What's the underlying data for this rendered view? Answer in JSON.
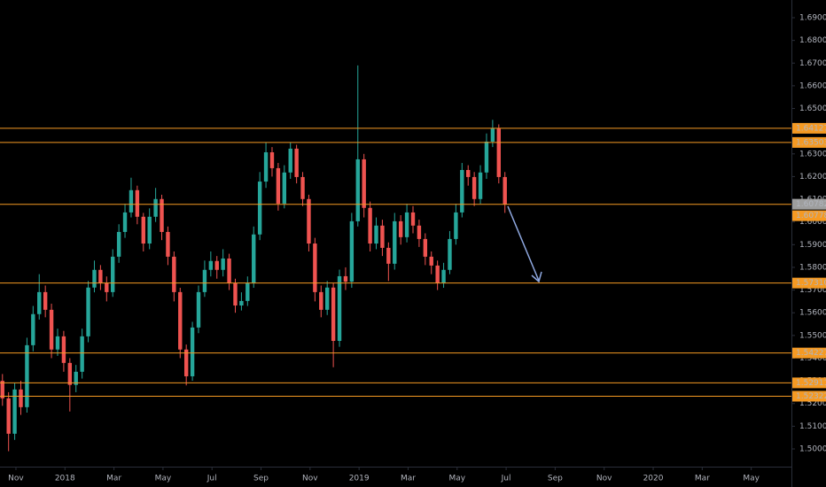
{
  "chart_data": {
    "type": "candlestick",
    "x": [
      -0.55,
      -0.3,
      -0.05,
      0.2,
      0.45,
      0.7,
      0.95,
      1.2,
      1.45,
      1.7,
      1.95,
      2.2,
      2.45,
      2.7,
      2.95,
      3.2,
      3.45,
      3.7,
      3.95,
      4.2,
      4.45,
      4.7,
      4.95,
      5.2,
      5.45,
      5.7,
      5.95,
      6.2,
      6.45,
      6.7,
      6.95,
      7.2,
      7.45,
      7.7,
      7.95,
      8.2,
      8.45,
      8.7,
      8.95,
      9.2,
      9.45,
      9.7,
      9.95,
      10.2,
      10.45,
      10.7,
      10.95,
      11.2,
      11.45,
      11.7,
      11.95,
      12.2,
      12.45,
      12.7,
      12.95,
      13.2,
      13.45,
      13.7,
      13.95,
      14.2,
      14.45,
      14.7,
      14.95,
      15.2,
      15.45,
      15.7,
      15.95,
      16.2,
      16.45,
      16.7,
      16.95,
      17.2,
      17.45,
      17.7,
      17.95,
      18.2,
      18.45,
      18.7,
      18.95,
      19.2,
      19.45,
      19.7,
      19.95
    ],
    "open": [
      1.53,
      1.5223,
      1.5067,
      1.5262,
      1.5184,
      1.5457,
      1.5594,
      1.5691,
      1.5613,
      1.5438,
      1.5496,
      1.5379,
      1.5282,
      1.534,
      1.5496,
      1.5711,
      1.5789,
      1.573,
      1.5691,
      1.5847,
      1.5956,
      1.6042,
      1.614,
      1.6023,
      1.5905,
      1.6023,
      1.6101,
      1.5956,
      1.5847,
      1.5691,
      1.5438,
      1.532,
      1.5535,
      1.5691,
      1.5789,
      1.5828,
      1.5789,
      1.5839,
      1.573,
      1.5632,
      1.5652,
      1.573,
      1.5945,
      1.6178,
      1.6307,
      1.6237,
      1.6081,
      1.6218,
      1.6323,
      1.6198,
      1.6101,
      1.5905,
      1.5691,
      1.5613,
      1.5711,
      1.5476,
      1.5761,
      1.5737,
      1.6003,
      1.6276,
      1.6062,
      1.5905,
      1.5984,
      1.5886,
      1.5816,
      1.6003,
      1.5933,
      1.6042,
      1.5984,
      1.5925,
      1.5847,
      1.5808,
      1.573,
      1.5789,
      1.5925,
      1.6042,
      1.6229,
      1.6198,
      1.6101,
      1.6218,
      1.6354,
      1.6412,
      1.6198
    ],
    "high": [
      1.533,
      1.525,
      1.529,
      1.53,
      1.549,
      1.563,
      1.577,
      1.572,
      1.564,
      1.553,
      1.552,
      1.54,
      1.537,
      1.553,
      1.574,
      1.583,
      1.581,
      1.576,
      1.588,
      1.599,
      1.608,
      1.6195,
      1.616,
      1.604,
      1.606,
      1.615,
      1.612,
      1.598,
      1.587,
      1.571,
      1.546,
      1.556,
      1.572,
      1.583,
      1.587,
      1.585,
      1.588,
      1.586,
      1.575,
      1.569,
      1.576,
      1.598,
      1.622,
      1.635,
      1.633,
      1.626,
      1.625,
      1.635,
      1.634,
      1.622,
      1.612,
      1.593,
      1.572,
      1.574,
      1.573,
      1.579,
      1.58,
      1.604,
      1.669,
      1.63,
      1.609,
      1.602,
      1.601,
      1.591,
      1.604,
      1.603,
      1.608,
      1.607,
      1.601,
      1.595,
      1.587,
      1.583,
      1.582,
      1.596,
      1.608,
      1.626,
      1.625,
      1.622,
      1.625,
      1.639,
      1.645,
      1.643,
      1.622
    ],
    "low": [
      1.519,
      1.499,
      1.504,
      1.515,
      1.516,
      1.543,
      1.557,
      1.558,
      1.54,
      1.541,
      1.534,
      1.5165,
      1.525,
      1.531,
      1.547,
      1.569,
      1.57,
      1.565,
      1.567,
      1.582,
      1.593,
      1.602,
      1.599,
      1.587,
      1.588,
      1.6,
      1.592,
      1.581,
      1.565,
      1.54,
      1.528,
      1.53,
      1.551,
      1.567,
      1.576,
      1.575,
      1.576,
      1.57,
      1.56,
      1.561,
      1.563,
      1.571,
      1.592,
      1.615,
      1.62,
      1.605,
      1.606,
      1.619,
      1.617,
      1.607,
      1.587,
      1.565,
      1.558,
      1.559,
      1.536,
      1.545,
      1.57,
      1.571,
      1.598,
      1.602,
      1.587,
      1.588,
      1.585,
      1.574,
      1.579,
      1.59,
      1.591,
      1.595,
      1.589,
      1.581,
      1.577,
      1.57,
      1.571,
      1.577,
      1.59,
      1.602,
      1.616,
      1.607,
      1.608,
      1.619,
      1.633,
      1.617,
      1.604
    ],
    "close": [
      1.5223,
      1.5067,
      1.5262,
      1.5184,
      1.5457,
      1.5594,
      1.5691,
      1.5613,
      1.5438,
      1.5496,
      1.5379,
      1.5282,
      1.534,
      1.5496,
      1.5711,
      1.5789,
      1.573,
      1.5691,
      1.5847,
      1.5956,
      1.6042,
      1.614,
      1.6023,
      1.5905,
      1.6023,
      1.6101,
      1.5956,
      1.5847,
      1.5691,
      1.5438,
      1.532,
      1.5535,
      1.5691,
      1.5789,
      1.5828,
      1.5789,
      1.5839,
      1.573,
      1.5632,
      1.5652,
      1.573,
      1.5945,
      1.6178,
      1.6307,
      1.6237,
      1.6081,
      1.6218,
      1.6323,
      1.6198,
      1.6101,
      1.5905,
      1.5691,
      1.5613,
      1.5711,
      1.5476,
      1.5761,
      1.5737,
      1.6003,
      1.6276,
      1.6062,
      1.5905,
      1.5984,
      1.5886,
      1.5816,
      1.6003,
      1.5933,
      1.6042,
      1.5984,
      1.5925,
      1.5847,
      1.5808,
      1.573,
      1.5789,
      1.5925,
      1.6042,
      1.6229,
      1.6198,
      1.6101,
      1.6218,
      1.6354,
      1.6412,
      1.6198,
      1.60782
    ],
    "up_color": "#26a69a",
    "down_color": "#ef5350",
    "xlim": [
      -0.65,
      31.64
    ],
    "xticks": [
      {
        "value": 0,
        "label": "Nov"
      },
      {
        "value": 2,
        "label": "2018"
      },
      {
        "value": 4,
        "label": "Mar"
      },
      {
        "value": 6,
        "label": "May"
      },
      {
        "value": 8,
        "label": "Jul"
      },
      {
        "value": 10,
        "label": "Sep"
      },
      {
        "value": 12,
        "label": "Nov"
      },
      {
        "value": 14,
        "label": "2019"
      },
      {
        "value": 16,
        "label": "Mar"
      },
      {
        "value": 18,
        "label": "May"
      },
      {
        "value": 20,
        "label": "Jul"
      },
      {
        "value": 22,
        "label": "Sep"
      },
      {
        "value": 24,
        "label": "Nov"
      },
      {
        "value": 26,
        "label": "2020"
      },
      {
        "value": 28,
        "label": "Mar"
      },
      {
        "value": 30,
        "label": "May"
      }
    ],
    "ylim": [
      1.4922,
      1.6978
    ],
    "yticks": [
      {
        "value": 1.5,
        "label": "1.50000"
      },
      {
        "value": 1.51,
        "label": "1.51000"
      },
      {
        "value": 1.52,
        "label": "1.52000"
      },
      {
        "value": 1.53,
        "label": "1.53000"
      },
      {
        "value": 1.54,
        "label": "1.54000"
      },
      {
        "value": 1.55,
        "label": "1.55000"
      },
      {
        "value": 1.56,
        "label": "1.56000"
      },
      {
        "value": 1.57,
        "label": "1.57000"
      },
      {
        "value": 1.58,
        "label": "1.58000"
      },
      {
        "value": 1.59,
        "label": "1.59000"
      },
      {
        "value": 1.6,
        "label": "1.60000"
      },
      {
        "value": 1.61,
        "label": "1.61000"
      },
      {
        "value": 1.62,
        "label": "1.62000"
      },
      {
        "value": 1.63,
        "label": "1.63000"
      },
      {
        "value": 1.64,
        "label": "1.64000"
      },
      {
        "value": 1.65,
        "label": "1.65000"
      },
      {
        "value": 1.66,
        "label": "1.66000"
      },
      {
        "value": 1.67,
        "label": "1.67000"
      },
      {
        "value": 1.68,
        "label": "1.68000"
      },
      {
        "value": 1.69,
        "label": "1.69000"
      }
    ],
    "levels": [
      1.64127,
      1.63503,
      1.60778,
      {
        "value": 1.5731,
        "label": "1.57310"
      },
      1.54227,
      1.52911,
      1.52322
    ],
    "level_color": "#f59a23",
    "last_price": 1.60782,
    "last_price_color": "#9e9e9e",
    "grid": false
  }
}
